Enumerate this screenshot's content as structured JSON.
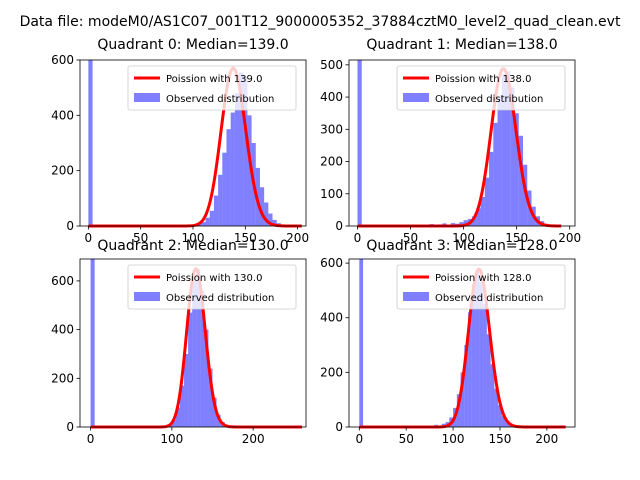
{
  "figure": {
    "suptitle": "Data file: modeM0/AS1C07_001T12_9000005352_37884cztM0_level2_quad_clean.evt"
  },
  "colors": {
    "poisson_line": "#ff0000",
    "observed_bars": "#0000ff",
    "background": "#ffffff",
    "axes": "#000000"
  },
  "chart_data": [
    {
      "type": "bar",
      "title": "Quadrant 0: Median=139.0",
      "xlim": [
        -8,
        208
      ],
      "ylim": [
        0,
        600
      ],
      "xticks": [
        0,
        50,
        100,
        150,
        200
      ],
      "xtick_labels": [
        "0",
        "50",
        "100",
        "150",
        "200"
      ],
      "yticks": [
        0,
        200,
        400,
        600
      ],
      "ytick_labels": [
        "0",
        "200",
        "400",
        "600"
      ],
      "legend": {
        "location": "upper right",
        "entries": [
          "Poission with 139.0",
          "Observed distribution"
        ]
      },
      "histogram": {
        "bin_edges": [
          0,
          4,
          8,
          12,
          16,
          20,
          24,
          28,
          32,
          36,
          40,
          44,
          48,
          52,
          56,
          60,
          64,
          68,
          72,
          76,
          80,
          84,
          88,
          92,
          96,
          100,
          104,
          108,
          112,
          116,
          120,
          124,
          128,
          132,
          136,
          140,
          144,
          148,
          152,
          156,
          160,
          164,
          168,
          172,
          176,
          180,
          184,
          188,
          192,
          196,
          200,
          204
        ],
        "counts": [
          600,
          0,
          0,
          0,
          0,
          0,
          0,
          0,
          0,
          0,
          0,
          0,
          0,
          0,
          0,
          0,
          0,
          0,
          0,
          0,
          0,
          0,
          0,
          2,
          4,
          6,
          8,
          14,
          30,
          55,
          110,
          185,
          265,
          350,
          410,
          480,
          555,
          540,
          400,
          300,
          210,
          140,
          85,
          45,
          22,
          10,
          5,
          2,
          1,
          0,
          1
        ]
      },
      "poisson": {
        "name": "Poission with 139.0",
        "mu": 139.0,
        "x_range": [
          0,
          204
        ],
        "peak": 570
      }
    },
    {
      "type": "bar",
      "title": "Quadrant 1: Median=138.0",
      "xlim": [
        -8,
        205
      ],
      "ylim": [
        0,
        515
      ],
      "xticks": [
        0,
        50,
        100,
        150,
        200
      ],
      "xtick_labels": [
        "0",
        "50",
        "100",
        "150",
        "200"
      ],
      "yticks": [
        0,
        100,
        200,
        300,
        400,
        500
      ],
      "ytick_labels": [
        "0",
        "100",
        "200",
        "300",
        "400",
        "500"
      ],
      "legend": {
        "location": "upper right",
        "entries": [
          "Poission with 138.0",
          "Observed distribution"
        ]
      },
      "histogram": {
        "bin_edges": [
          0,
          4,
          8,
          12,
          16,
          20,
          24,
          28,
          32,
          36,
          40,
          44,
          48,
          52,
          56,
          60,
          64,
          68,
          72,
          76,
          80,
          84,
          88,
          92,
          96,
          100,
          104,
          108,
          112,
          116,
          120,
          124,
          128,
          132,
          136,
          140,
          144,
          148,
          152,
          156,
          160,
          164,
          168,
          172,
          176,
          180,
          184,
          188,
          192
        ],
        "counts": [
          515,
          0,
          0,
          0,
          0,
          0,
          0,
          0,
          0,
          0,
          0,
          0,
          0,
          0,
          0,
          0,
          3,
          6,
          2,
          5,
          8,
          4,
          9,
          7,
          12,
          18,
          22,
          30,
          55,
          90,
          150,
          230,
          320,
          400,
          470,
          480,
          430,
          350,
          280,
          190,
          110,
          60,
          30,
          15,
          7,
          3,
          1,
          0
        ]
      },
      "poisson": {
        "name": "Poission with 138.0",
        "mu": 138.0,
        "x_range": [
          0,
          192
        ],
        "peak": 488
      }
    },
    {
      "type": "bar",
      "title": "Quadrant 2: Median=130.0",
      "xlim": [
        -13,
        265
      ],
      "ylim": [
        0,
        690
      ],
      "xticks": [
        0,
        100,
        200
      ],
      "xtick_labels": [
        "0",
        "100",
        "200"
      ],
      "yticks": [
        0,
        200,
        400,
        600
      ],
      "ytick_labels": [
        "0",
        "200",
        "400",
        "600"
      ],
      "legend": {
        "location": "upper right",
        "entries": [
          "Poission with 130.0",
          "Observed distribution"
        ]
      },
      "histogram": {
        "bin_edges": [
          0,
          5,
          10,
          15,
          20,
          25,
          30,
          35,
          40,
          45,
          50,
          55,
          60,
          65,
          70,
          75,
          80,
          85,
          90,
          95,
          100,
          105,
          110,
          115,
          120,
          125,
          130,
          135,
          140,
          145,
          150,
          155,
          160,
          165,
          170,
          175,
          180,
          185,
          190,
          195,
          200,
          205,
          210,
          215,
          220,
          225,
          230,
          235,
          240,
          245,
          250,
          255,
          260
        ],
        "counts": [
          690,
          0,
          0,
          0,
          0,
          0,
          0,
          0,
          0,
          0,
          0,
          0,
          0,
          0,
          0,
          0,
          1,
          3,
          6,
          12,
          30,
          80,
          170,
          300,
          470,
          600,
          650,
          560,
          400,
          240,
          120,
          50,
          20,
          8,
          3,
          1,
          1,
          0,
          0,
          0,
          0,
          0,
          0,
          0,
          0,
          0,
          0,
          0,
          0,
          0,
          0,
          0
        ]
      },
      "poisson": {
        "name": "Poission with 130.0",
        "mu": 130.0,
        "x_range": [
          0,
          260
        ],
        "peak": 650
      }
    },
    {
      "type": "bar",
      "title": "Quadrant 3: Median=128.0",
      "xlim": [
        -11,
        230
      ],
      "ylim": [
        0,
        615
      ],
      "xticks": [
        0,
        50,
        100,
        150,
        200
      ],
      "xtick_labels": [
        "0",
        "50",
        "100",
        "150",
        "200"
      ],
      "yticks": [
        0,
        200,
        400,
        600
      ],
      "ytick_labels": [
        "0",
        "200",
        "400",
        "600"
      ],
      "legend": {
        "location": "upper right",
        "entries": [
          "Poission with 128.0",
          "Observed distribution"
        ]
      },
      "histogram": {
        "bin_edges": [
          0,
          4,
          8,
          12,
          16,
          20,
          24,
          28,
          32,
          36,
          40,
          44,
          48,
          52,
          56,
          60,
          64,
          68,
          72,
          76,
          80,
          84,
          88,
          92,
          96,
          100,
          104,
          108,
          112,
          116,
          120,
          124,
          128,
          132,
          136,
          140,
          144,
          148,
          152,
          156,
          160,
          164,
          168,
          172,
          176,
          180,
          184,
          188,
          192,
          196,
          200,
          204,
          208,
          212,
          216,
          220
        ],
        "counts": [
          615,
          0,
          0,
          0,
          0,
          0,
          0,
          0,
          0,
          0,
          0,
          0,
          0,
          1,
          0,
          2,
          0,
          3,
          2,
          4,
          8,
          5,
          12,
          18,
          35,
          70,
          120,
          200,
          300,
          420,
          520,
          570,
          530,
          450,
          340,
          230,
          140,
          80,
          40,
          20,
          10,
          5,
          2,
          1,
          1,
          0,
          0,
          0,
          0,
          0,
          0,
          0,
          0,
          0,
          0
        ]
      },
      "poisson": {
        "name": "Poission with 128.0",
        "mu": 128.0,
        "x_range": [
          0,
          220
        ],
        "peak": 578
      }
    }
  ]
}
